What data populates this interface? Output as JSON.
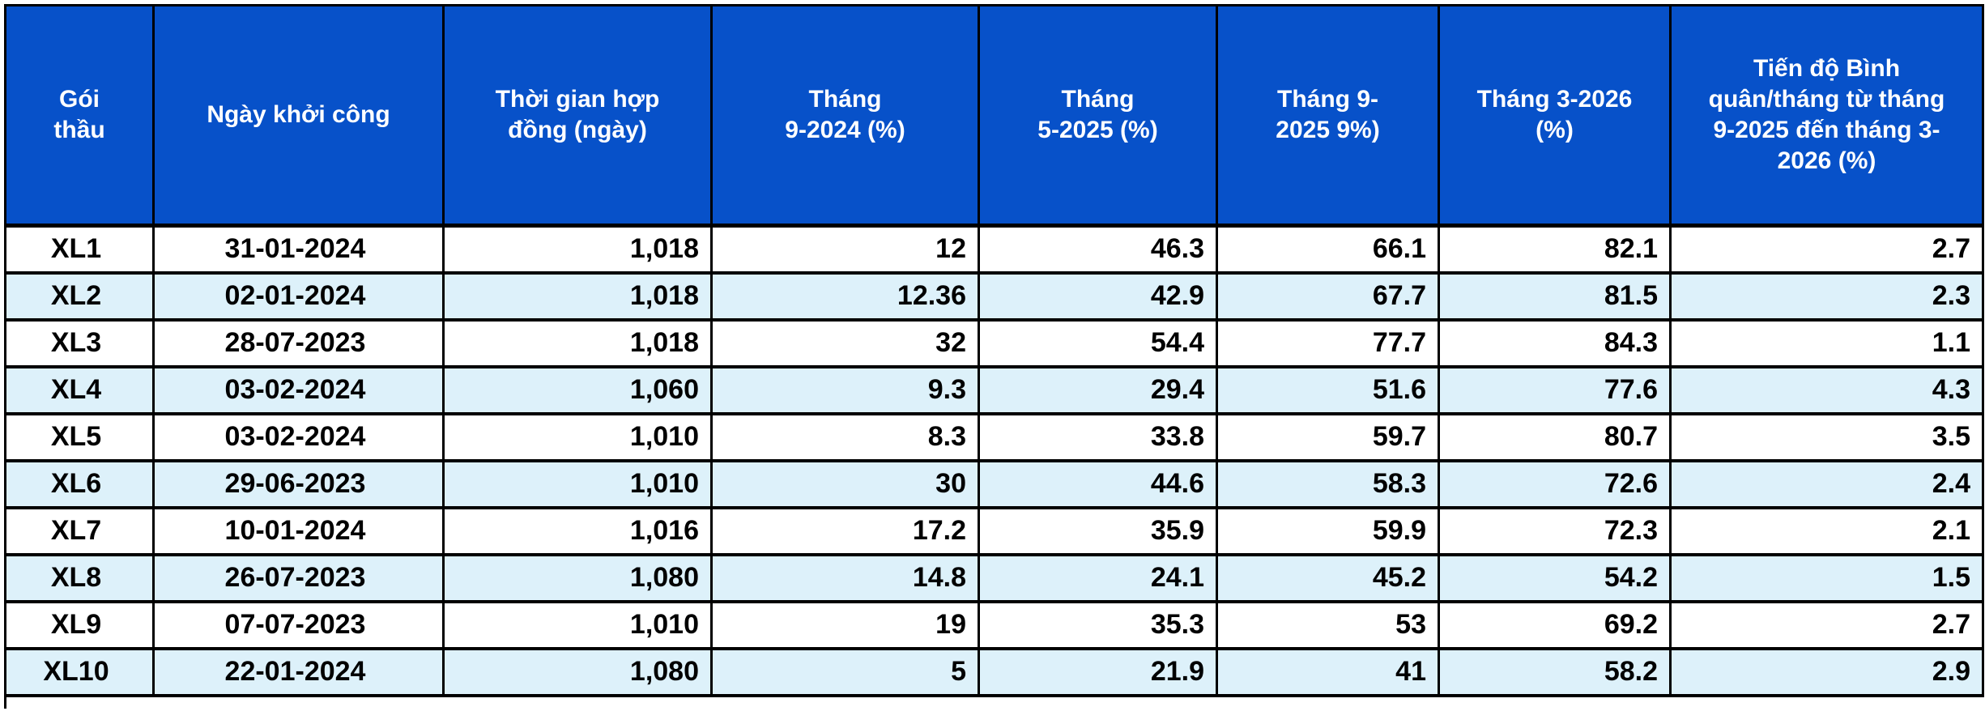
{
  "app": {
    "description": "Spreadsheet progress table of construction packages"
  },
  "colors": {
    "header_bg": "#0751c9",
    "header_text": "#ffffff",
    "stripe_row_bg": "#ddf1fa",
    "plain_row_bg": "#ffffff",
    "grid_border": "#000000",
    "alert_text": "#fb0000",
    "active_cell_border": "#107c41"
  },
  "table": {
    "columns": [
      {
        "label": "Gói\nthầu"
      },
      {
        "label": "Ngày khởi công"
      },
      {
        "label": "Thời gian hợp\nđồng (ngày)"
      },
      {
        "label": "Tháng\n9-2024 (%)"
      },
      {
        "label": "Tháng\n5-2025 (%)"
      },
      {
        "label": "Tháng 9-\n2025 9%)"
      },
      {
        "label": "Tháng 3-2026\n(%)"
      },
      {
        "label": "Tiến độ Bình\nquân/tháng từ tháng\n9-2025 đến tháng 3-\n2026 (%)"
      }
    ],
    "rows": [
      {
        "cells": [
          "XL1",
          "31-01-2024",
          "1,018",
          "12",
          "46.3",
          "66.1",
          "82.1",
          "2.7"
        ],
        "col7_red": false,
        "selected": true
      },
      {
        "cells": [
          "XL2",
          "02-01-2024",
          "1,018",
          "12.36",
          "42.9",
          "67.7",
          "81.5",
          "2.3"
        ],
        "col7_red": false,
        "selected": false
      },
      {
        "cells": [
          "XL3",
          "28-07-2023",
          "1,018",
          "32",
          "54.4",
          "77.7",
          "84.3",
          "1.1"
        ],
        "col7_red": false,
        "selected": false
      },
      {
        "cells": [
          "XL4",
          "03-02-2024",
          "1,060",
          "9.3",
          "29.4",
          "51.6",
          "77.6",
          "4.3"
        ],
        "col7_red": false,
        "selected": false
      },
      {
        "cells": [
          "XL5",
          "03-02-2024",
          "1,010",
          "8.3",
          "33.8",
          "59.7",
          "80.7",
          "3.5"
        ],
        "col7_red": false,
        "selected": false
      },
      {
        "cells": [
          "XL6",
          "29-06-2023",
          "1,010",
          "30",
          "44.6",
          "58.3",
          "72.6",
          "2.4"
        ],
        "col7_red": true,
        "selected": false
      },
      {
        "cells": [
          "XL7",
          "10-01-2024",
          "1,016",
          "17.2",
          "35.9",
          "59.9",
          "72.3",
          "2.1"
        ],
        "col7_red": true,
        "selected": false
      },
      {
        "cells": [
          "XL8",
          "26-07-2023",
          "1,080",
          "14.8",
          "24.1",
          "45.2",
          "54.2",
          "1.5"
        ],
        "col7_red": true,
        "selected": false
      },
      {
        "cells": [
          "XL9",
          "07-07-2023",
          "1,010",
          "19",
          "35.3",
          "53",
          "69.2",
          "2.7"
        ],
        "col7_red": true,
        "selected": false
      },
      {
        "cells": [
          "XL10",
          "22-01-2024",
          "1,080",
          "5",
          "21.9",
          "41",
          "58.2",
          "2.9"
        ],
        "col7_red": true,
        "selected": false
      }
    ]
  }
}
